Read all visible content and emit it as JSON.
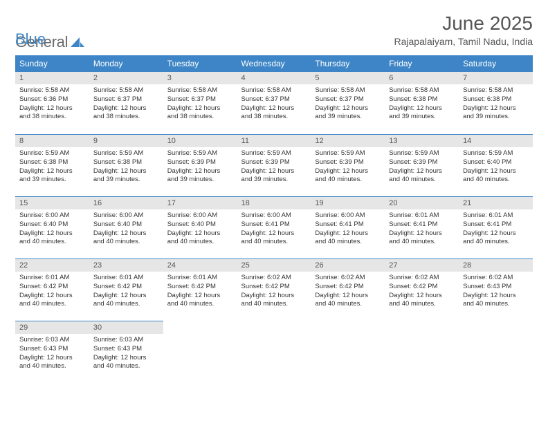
{
  "logo": {
    "text_a": "General",
    "text_b": "Blue"
  },
  "title": "June 2025",
  "location": "Rajapalaiyam, Tamil Nadu, India",
  "colors": {
    "header_bg": "#3d85c6",
    "header_fg": "#ffffff",
    "daynum_bg": "#e6e6e6",
    "border": "#3d85c6",
    "text": "#333333",
    "logo_gray": "#6b6b6b",
    "logo_blue": "#3d85c6",
    "page_bg": "#ffffff"
  },
  "fonts": {
    "title_size_pt": 21,
    "location_size_pt": 10.5,
    "header_size_pt": 9,
    "daynum_size_pt": 8,
    "body_size_pt": 7
  },
  "weekdays": [
    "Sunday",
    "Monday",
    "Tuesday",
    "Wednesday",
    "Thursday",
    "Friday",
    "Saturday"
  ],
  "days": [
    {
      "n": 1,
      "sunrise": "5:58 AM",
      "sunset": "6:36 PM",
      "daylight": "12 hours and 38 minutes."
    },
    {
      "n": 2,
      "sunrise": "5:58 AM",
      "sunset": "6:37 PM",
      "daylight": "12 hours and 38 minutes."
    },
    {
      "n": 3,
      "sunrise": "5:58 AM",
      "sunset": "6:37 PM",
      "daylight": "12 hours and 38 minutes."
    },
    {
      "n": 4,
      "sunrise": "5:58 AM",
      "sunset": "6:37 PM",
      "daylight": "12 hours and 38 minutes."
    },
    {
      "n": 5,
      "sunrise": "5:58 AM",
      "sunset": "6:37 PM",
      "daylight": "12 hours and 39 minutes."
    },
    {
      "n": 6,
      "sunrise": "5:58 AM",
      "sunset": "6:38 PM",
      "daylight": "12 hours and 39 minutes."
    },
    {
      "n": 7,
      "sunrise": "5:58 AM",
      "sunset": "6:38 PM",
      "daylight": "12 hours and 39 minutes."
    },
    {
      "n": 8,
      "sunrise": "5:59 AM",
      "sunset": "6:38 PM",
      "daylight": "12 hours and 39 minutes."
    },
    {
      "n": 9,
      "sunrise": "5:59 AM",
      "sunset": "6:38 PM",
      "daylight": "12 hours and 39 minutes."
    },
    {
      "n": 10,
      "sunrise": "5:59 AM",
      "sunset": "6:39 PM",
      "daylight": "12 hours and 39 minutes."
    },
    {
      "n": 11,
      "sunrise": "5:59 AM",
      "sunset": "6:39 PM",
      "daylight": "12 hours and 39 minutes."
    },
    {
      "n": 12,
      "sunrise": "5:59 AM",
      "sunset": "6:39 PM",
      "daylight": "12 hours and 40 minutes."
    },
    {
      "n": 13,
      "sunrise": "5:59 AM",
      "sunset": "6:39 PM",
      "daylight": "12 hours and 40 minutes."
    },
    {
      "n": 14,
      "sunrise": "5:59 AM",
      "sunset": "6:40 PM",
      "daylight": "12 hours and 40 minutes."
    },
    {
      "n": 15,
      "sunrise": "6:00 AM",
      "sunset": "6:40 PM",
      "daylight": "12 hours and 40 minutes."
    },
    {
      "n": 16,
      "sunrise": "6:00 AM",
      "sunset": "6:40 PM",
      "daylight": "12 hours and 40 minutes."
    },
    {
      "n": 17,
      "sunrise": "6:00 AM",
      "sunset": "6:40 PM",
      "daylight": "12 hours and 40 minutes."
    },
    {
      "n": 18,
      "sunrise": "6:00 AM",
      "sunset": "6:41 PM",
      "daylight": "12 hours and 40 minutes."
    },
    {
      "n": 19,
      "sunrise": "6:00 AM",
      "sunset": "6:41 PM",
      "daylight": "12 hours and 40 minutes."
    },
    {
      "n": 20,
      "sunrise": "6:01 AM",
      "sunset": "6:41 PM",
      "daylight": "12 hours and 40 minutes."
    },
    {
      "n": 21,
      "sunrise": "6:01 AM",
      "sunset": "6:41 PM",
      "daylight": "12 hours and 40 minutes."
    },
    {
      "n": 22,
      "sunrise": "6:01 AM",
      "sunset": "6:42 PM",
      "daylight": "12 hours and 40 minutes."
    },
    {
      "n": 23,
      "sunrise": "6:01 AM",
      "sunset": "6:42 PM",
      "daylight": "12 hours and 40 minutes."
    },
    {
      "n": 24,
      "sunrise": "6:01 AM",
      "sunset": "6:42 PM",
      "daylight": "12 hours and 40 minutes."
    },
    {
      "n": 25,
      "sunrise": "6:02 AM",
      "sunset": "6:42 PM",
      "daylight": "12 hours and 40 minutes."
    },
    {
      "n": 26,
      "sunrise": "6:02 AM",
      "sunset": "6:42 PM",
      "daylight": "12 hours and 40 minutes."
    },
    {
      "n": 27,
      "sunrise": "6:02 AM",
      "sunset": "6:42 PM",
      "daylight": "12 hours and 40 minutes."
    },
    {
      "n": 28,
      "sunrise": "6:02 AM",
      "sunset": "6:43 PM",
      "daylight": "12 hours and 40 minutes."
    },
    {
      "n": 29,
      "sunrise": "6:03 AM",
      "sunset": "6:43 PM",
      "daylight": "12 hours and 40 minutes."
    },
    {
      "n": 30,
      "sunrise": "6:03 AM",
      "sunset": "6:43 PM",
      "daylight": "12 hours and 40 minutes."
    }
  ],
  "labels": {
    "sunrise": "Sunrise:",
    "sunset": "Sunset:",
    "daylight": "Daylight:"
  }
}
